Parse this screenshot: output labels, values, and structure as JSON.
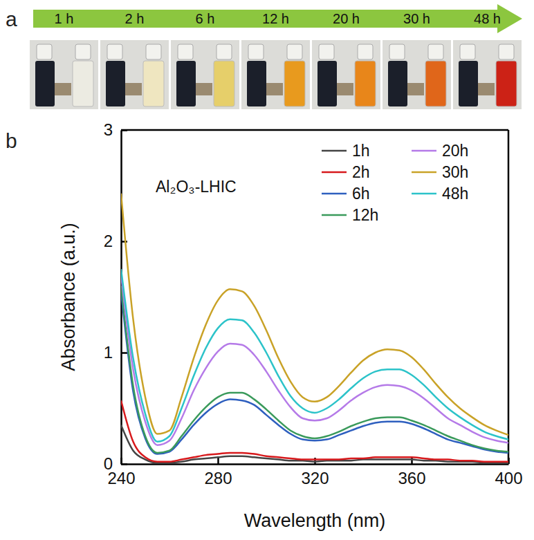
{
  "panel_a": {
    "label": "a",
    "times": [
      "1 h",
      "2 h",
      "6 h",
      "12 h",
      "20 h",
      "30 h",
      "48 h"
    ]
  },
  "chart_data": {
    "type": "line",
    "panel_label": "b",
    "annotation": "Al₂O₃-LHIC",
    "x_label": "Wavelength (nm)",
    "y_label": "Absorbance (a.u.)",
    "x": [
      240,
      245,
      250,
      255,
      260,
      265,
      270,
      275,
      280,
      285,
      290,
      295,
      300,
      305,
      310,
      315,
      320,
      325,
      330,
      335,
      340,
      345,
      350,
      355,
      360,
      365,
      370,
      375,
      380,
      385,
      390,
      395,
      400
    ],
    "series": [
      {
        "name": "1h",
        "color": "#444444",
        "values": [
          0.35,
          0.12,
          0.04,
          0.01,
          0.01,
          0.02,
          0.04,
          0.05,
          0.06,
          0.07,
          0.07,
          0.06,
          0.05,
          0.04,
          0.03,
          0.03,
          0.02,
          0.03,
          0.03,
          0.03,
          0.04,
          0.04,
          0.04,
          0.04,
          0.04,
          0.03,
          0.03,
          0.02,
          0.02,
          0.02,
          0.01,
          0.01,
          0.01
        ]
      },
      {
        "name": "2h",
        "color": "#d7191c",
        "values": [
          0.57,
          0.2,
          0.06,
          0.02,
          0.02,
          0.04,
          0.06,
          0.08,
          0.09,
          0.1,
          0.1,
          0.09,
          0.07,
          0.06,
          0.05,
          0.04,
          0.04,
          0.04,
          0.04,
          0.05,
          0.05,
          0.06,
          0.06,
          0.06,
          0.06,
          0.05,
          0.04,
          0.04,
          0.03,
          0.03,
          0.02,
          0.02,
          0.02
        ]
      },
      {
        "name": "6h",
        "color": "#2e5fbf",
        "values": [
          1.55,
          0.65,
          0.23,
          0.09,
          0.11,
          0.22,
          0.35,
          0.46,
          0.54,
          0.58,
          0.57,
          0.53,
          0.44,
          0.35,
          0.27,
          0.22,
          0.21,
          0.22,
          0.26,
          0.3,
          0.34,
          0.37,
          0.38,
          0.38,
          0.36,
          0.32,
          0.27,
          0.22,
          0.19,
          0.16,
          0.13,
          0.11,
          0.1
        ]
      },
      {
        "name": "12h",
        "color": "#3a9a5b",
        "values": [
          1.6,
          0.7,
          0.25,
          0.1,
          0.12,
          0.25,
          0.39,
          0.51,
          0.6,
          0.64,
          0.64,
          0.58,
          0.49,
          0.39,
          0.3,
          0.25,
          0.23,
          0.25,
          0.29,
          0.34,
          0.38,
          0.41,
          0.42,
          0.42,
          0.39,
          0.35,
          0.3,
          0.25,
          0.21,
          0.17,
          0.14,
          0.12,
          0.11
        ]
      },
      {
        "name": "20h",
        "color": "#b57ae8",
        "values": [
          1.7,
          0.85,
          0.38,
          0.17,
          0.21,
          0.41,
          0.66,
          0.86,
          1.01,
          1.08,
          1.07,
          0.98,
          0.83,
          0.66,
          0.51,
          0.41,
          0.39,
          0.41,
          0.48,
          0.57,
          0.64,
          0.69,
          0.71,
          0.7,
          0.66,
          0.59,
          0.5,
          0.41,
          0.35,
          0.29,
          0.24,
          0.21,
          0.19
        ]
      },
      {
        "name": "30h",
        "color": "#c9a227",
        "values": [
          2.43,
          1.3,
          0.6,
          0.27,
          0.3,
          0.6,
          0.95,
          1.25,
          1.47,
          1.57,
          1.55,
          1.42,
          1.2,
          0.95,
          0.74,
          0.6,
          0.56,
          0.6,
          0.7,
          0.82,
          0.93,
          1.0,
          1.03,
          1.02,
          0.96,
          0.85,
          0.72,
          0.6,
          0.5,
          0.42,
          0.35,
          0.3,
          0.26
        ]
      },
      {
        "name": "48h",
        "color": "#2cc3c9",
        "values": [
          1.75,
          0.95,
          0.45,
          0.2,
          0.25,
          0.5,
          0.79,
          1.04,
          1.22,
          1.3,
          1.29,
          1.18,
          1.0,
          0.79,
          0.61,
          0.5,
          0.46,
          0.5,
          0.58,
          0.68,
          0.77,
          0.83,
          0.85,
          0.85,
          0.8,
          0.71,
          0.6,
          0.5,
          0.42,
          0.35,
          0.29,
          0.25,
          0.22
        ]
      }
    ],
    "xlim": [
      240,
      400
    ],
    "xticks": [
      240,
      280,
      320,
      360,
      400
    ],
    "ylim": [
      0,
      3
    ],
    "yticks": [
      0,
      1,
      2,
      3
    ],
    "legend": "top-right"
  }
}
